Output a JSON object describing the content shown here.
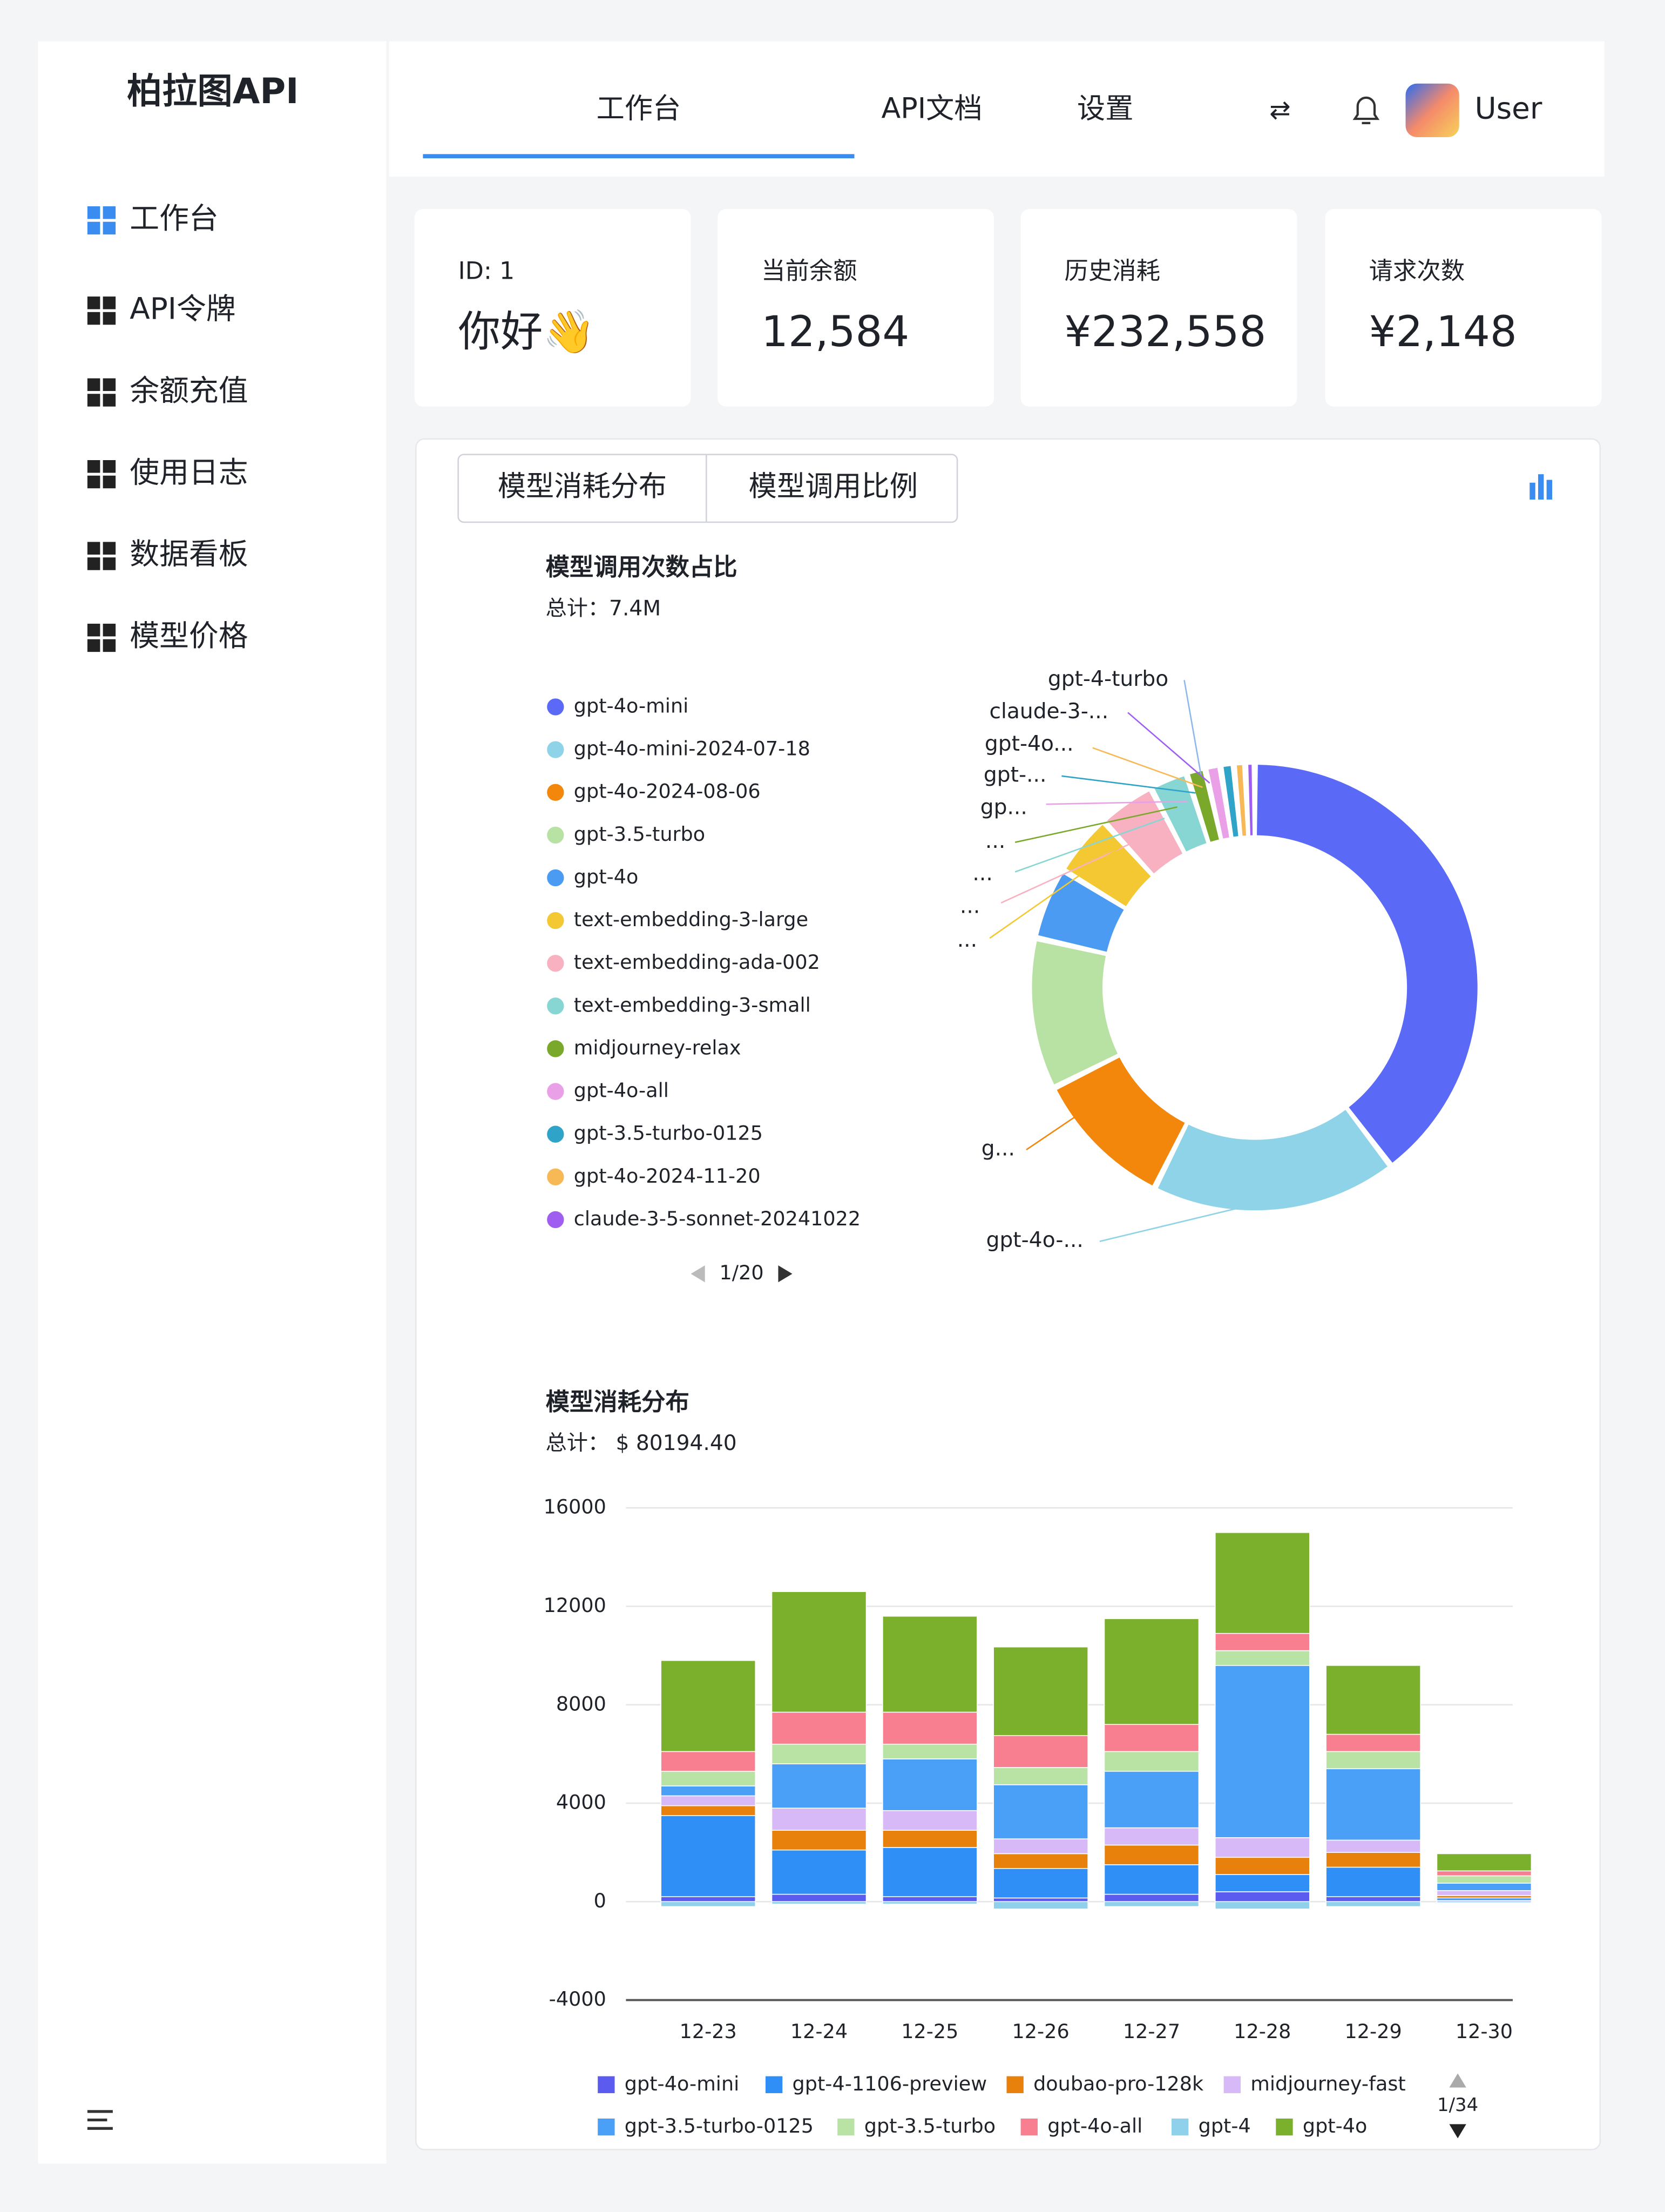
{
  "sidebar": {
    "brand": "柏拉图API",
    "menu": [
      "工作台",
      "API令牌",
      "余额充值",
      "使用日志",
      "数据看板",
      "模型价格"
    ]
  },
  "header": {
    "nav": [
      "工作台",
      "API文档",
      "设置"
    ],
    "user": "User"
  },
  "cards": [
    {
      "label": "ID: 1",
      "value": "你好👋"
    },
    {
      "label": "当前余额",
      "value": "12,584"
    },
    {
      "label": "历史消耗",
      "value": "¥232,558"
    },
    {
      "label": "请求次数",
      "value": "¥2,148"
    }
  ],
  "tabs": [
    "模型消耗分布",
    "模型调用比例"
  ],
  "chart_data": [
    {
      "type": "pie",
      "title": "模型调用次数占比",
      "subtitle": "总计：7.4M",
      "categories": [
        "gpt-4o-mini",
        "gpt-4o-mini-2024-07-18",
        "gpt-4o-2024-08-06",
        "gpt-3.5-turbo",
        "gpt-4o",
        "text-embedding-3-large",
        "text-embedding-ada-002",
        "text-embedding-3-small",
        "midjourney-relax",
        "gpt-4o-all",
        "gpt-3.5-turbo-0125",
        "gpt-4o-2024-11-20",
        "claude-3-5-sonnet-20241022"
      ],
      "values": [
        2900000,
        1300000,
        750000,
        800000,
        380000,
        330000,
        300000,
        200000,
        100000,
        80000,
        70000,
        60000,
        50000
      ],
      "colors": [
        "#5b6af6",
        "#8fd3e8",
        "#f2870b",
        "#b8e2a4",
        "#4c9bf3",
        "#f4c832",
        "#f7b1c1",
        "#87d6d3",
        "#7aa82a",
        "#e9a0e6",
        "#30a3c8",
        "#f6b956",
        "#a05ef0"
      ],
      "legend_page": "1/20",
      "slice_labels": [
        {
          "text": "gpt-4-turbo",
          "color": "#8fb8ea"
        },
        {
          "text": "claude-3-...",
          "color": "#a05ef0"
        },
        {
          "text": "gpt-4o...",
          "color": "#f6b956"
        },
        {
          "text": "gpt-...",
          "color": "#30a3c8"
        },
        {
          "text": "gp...",
          "color": "#e9a0e6"
        },
        {
          "text": "...",
          "color": "#7aa82a"
        },
        {
          "text": "...",
          "color": "#87d6d3"
        },
        {
          "text": "...",
          "color": "#f7b1c1"
        },
        {
          "text": "...",
          "color": "#f4c832"
        },
        {
          "text": "g...",
          "color": "#f2870b"
        },
        {
          "text": "gpt-4o-...",
          "color": "#8fd3e8"
        }
      ]
    },
    {
      "type": "stacked_bar",
      "title": "模型消耗分布",
      "subtitle": "总计： $ 80194.40",
      "categories": [
        "12-23",
        "12-24",
        "12-25",
        "12-26",
        "12-27",
        "12-28",
        "12-29",
        "12-30"
      ],
      "ylim": [
        -4000,
        16000
      ],
      "yticks": [
        -4000,
        0,
        4000,
        8000,
        12000,
        16000
      ],
      "grid": true,
      "legend_page": "1/34",
      "series": [
        {
          "name": "gpt-4o-mini",
          "color": "#5b5bf0",
          "values": [
            200,
            300,
            200,
            150,
            300,
            400,
            200,
            50
          ]
        },
        {
          "name": "gpt-4-1106-preview",
          "color": "#2f8ff6",
          "values": [
            3300,
            1800,
            2000,
            1200,
            1200,
            700,
            1200,
            100
          ]
        },
        {
          "name": "doubao-pro-128k",
          "color": "#e8800c",
          "values": [
            400,
            800,
            700,
            600,
            800,
            700,
            600,
            100
          ]
        },
        {
          "name": "midjourney-fast",
          "color": "#d8b9f7",
          "values": [
            400,
            900,
            800,
            600,
            700,
            800,
            500,
            200
          ]
        },
        {
          "name": "gpt-3.5-turbo-0125",
          "color": "#4aa0f6",
          "values": [
            400,
            1800,
            2100,
            2200,
            2300,
            7000,
            2900,
            300
          ]
        },
        {
          "name": "gpt-3.5-turbo",
          "color": "#b9e3a5",
          "values": [
            600,
            800,
            600,
            700,
            800,
            600,
            700,
            300
          ]
        },
        {
          "name": "gpt-4o-all",
          "color": "#f77f8f",
          "values": [
            800,
            1300,
            1300,
            1300,
            1100,
            700,
            700,
            200
          ]
        },
        {
          "name": "gpt-4",
          "color": "#8fd0ea",
          "values": [
            -200,
            -100,
            -100,
            -300,
            -200,
            -300,
            -200,
            -50
          ]
        },
        {
          "name": "gpt-4o",
          "color": "#7ab02b",
          "values": [
            3700,
            4900,
            3900,
            3600,
            4300,
            4100,
            2800,
            700
          ]
        }
      ]
    }
  ]
}
